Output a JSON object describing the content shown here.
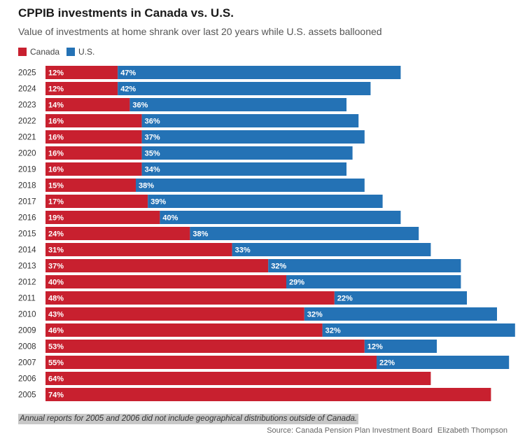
{
  "chart_data": {
    "type": "bar",
    "orientation": "horizontal",
    "stacked": true,
    "title": "CPPIB investments in Canada vs. U.S.",
    "subtitle": "Value of investments at home shrank over last 20 years while U.S. assets ballooned",
    "legend_position": "top-left",
    "grid": false,
    "xlim": [
      0,
      80
    ],
    "categories": [
      "2025",
      "2024",
      "2023",
      "2022",
      "2021",
      "2020",
      "2019",
      "2018",
      "2017",
      "2016",
      "2015",
      "2014",
      "2013",
      "2012",
      "2011",
      "2010",
      "2009",
      "2008",
      "2007",
      "2006",
      "2005"
    ],
    "series": [
      {
        "name": "Canada",
        "color": "#c8202f",
        "values": [
          12,
          12,
          14,
          16,
          16,
          16,
          16,
          15,
          17,
          19,
          24,
          31,
          37,
          40,
          48,
          43,
          46,
          53,
          55,
          64,
          74
        ],
        "labels": [
          "12%",
          "12%",
          "14%",
          "16%",
          "16%",
          "16%",
          "16%",
          "15%",
          "17%",
          "19%",
          "24%",
          "31%",
          "37%",
          "40%",
          "48%",
          "43%",
          "46%",
          "53%",
          "55%",
          "64%",
          "74%"
        ]
      },
      {
        "name": "U.S.",
        "color": "#2472b5",
        "values": [
          47,
          42,
          36,
          36,
          37,
          35,
          34,
          38,
          39,
          40,
          38,
          33,
          32,
          29,
          22,
          32,
          32,
          12,
          22,
          null,
          null
        ],
        "labels": [
          "47%",
          "42%",
          "36%",
          "36%",
          "37%",
          "35%",
          "34%",
          "38%",
          "39%",
          "40%",
          "38%",
          "33%",
          "32%",
          "29%",
          "22%",
          "32%",
          "32%",
          "12%",
          "22%",
          null,
          null
        ]
      }
    ]
  },
  "footnote": "Annual reports for 2005 and 2006 did not include geographical distributions outside of Canada.",
  "source": {
    "label": "Source: Canada Pension Plan Investment Board",
    "author": "Elizabeth Thompson"
  }
}
